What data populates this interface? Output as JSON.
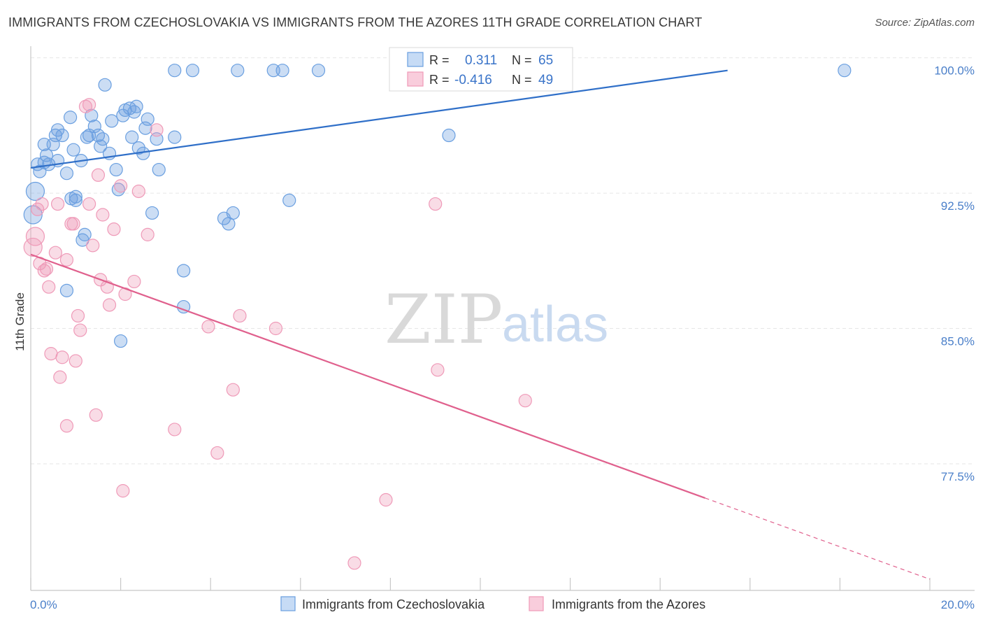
{
  "header": {
    "title": "IMMIGRANTS FROM CZECHOSLOVAKIA VS IMMIGRANTS FROM THE AZORES 11TH GRADE CORRELATION CHART",
    "source": "Source: ZipAtlas.com"
  },
  "watermark": {
    "zip": "ZIP",
    "atlas": "atlas"
  },
  "legend_box": {
    "rows": [
      {
        "r_label": "R =",
        "r_value": "0.311",
        "n_label": "N =",
        "n_value": "65"
      },
      {
        "r_label": "R =",
        "r_value": "-0.416",
        "n_label": "N =",
        "n_value": "49"
      }
    ]
  },
  "bottom_legend": {
    "items": [
      "Immigrants from Czechoslovakia",
      "Immigrants from the Azores"
    ]
  },
  "chart_data": {
    "type": "scatter",
    "title": "IMMIGRANTS FROM CZECHOSLOVAKIA VS IMMIGRANTS FROM THE AZORES 11TH GRADE CORRELATION CHART",
    "xlabel": "",
    "ylabel": "11th Grade",
    "xlim": [
      0,
      20
    ],
    "ylim": [
      71.8,
      101.5
    ],
    "x_tick_labels": [
      "0.0%",
      "20.0%"
    ],
    "y_tick_labels": [
      "100.0%",
      "92.5%",
      "85.0%",
      "77.5%"
    ],
    "y_ticks": [
      100.0,
      92.5,
      85.0,
      77.5
    ],
    "grid": true,
    "colors": {
      "blue": "#6a9fe0",
      "pink": "#ef9ab8",
      "blue_line": "#2f6fc8",
      "pink_line": "#e0608d"
    },
    "series": [
      {
        "name": "Immigrants from Czechoslovakia",
        "color": "#6a9fe0",
        "r": 0.311,
        "n": 65,
        "trend": {
          "x0": 0,
          "y0": 94.6,
          "x1": 15.5,
          "y1": 100.0
        },
        "points": [
          [
            0.05,
            92.0
          ],
          [
            0.1,
            93.3
          ],
          [
            0.15,
            94.8
          ],
          [
            0.2,
            94.4
          ],
          [
            0.3,
            94.9
          ],
          [
            0.3,
            95.9
          ],
          [
            0.35,
            95.3
          ],
          [
            0.4,
            94.8
          ],
          [
            0.5,
            95.9
          ],
          [
            0.55,
            96.4
          ],
          [
            0.6,
            96.7
          ],
          [
            0.7,
            96.4
          ],
          [
            0.8,
            94.3
          ],
          [
            0.88,
            97.4
          ],
          [
            0.9,
            92.9
          ],
          [
            0.95,
            95.6
          ],
          [
            1.0,
            92.8
          ],
          [
            1.12,
            95.0
          ],
          [
            1.15,
            90.6
          ],
          [
            1.2,
            90.9
          ],
          [
            1.25,
            96.3
          ],
          [
            1.3,
            96.4
          ],
          [
            1.35,
            97.5
          ],
          [
            1.42,
            96.9
          ],
          [
            1.5,
            96.4
          ],
          [
            1.55,
            95.8
          ],
          [
            1.6,
            96.2
          ],
          [
            1.65,
            99.2
          ],
          [
            1.75,
            95.4
          ],
          [
            1.8,
            97.2
          ],
          [
            1.9,
            94.5
          ],
          [
            1.95,
            93.4
          ],
          [
            2.05,
            97.5
          ],
          [
            2.1,
            97.8
          ],
          [
            2.2,
            97.9
          ],
          [
            2.25,
            96.3
          ],
          [
            2.3,
            97.7
          ],
          [
            2.35,
            98.0
          ],
          [
            2.4,
            95.7
          ],
          [
            2.5,
            95.4
          ],
          [
            2.55,
            96.8
          ],
          [
            2.6,
            97.3
          ],
          [
            2.7,
            92.1
          ],
          [
            2.8,
            96.2
          ],
          [
            2.85,
            94.5
          ],
          [
            3.2,
            100.0
          ],
          [
            3.2,
            96.3
          ],
          [
            3.4,
            88.9
          ],
          [
            3.6,
            100.0
          ],
          [
            4.3,
            91.8
          ],
          [
            4.4,
            91.5
          ],
          [
            4.5,
            92.1
          ],
          [
            4.6,
            100.0
          ],
          [
            5.4,
            100.0
          ],
          [
            5.6,
            100.0
          ],
          [
            5.75,
            92.8
          ],
          [
            6.4,
            100.0
          ],
          [
            8.2,
            100.0
          ],
          [
            9.3,
            96.4
          ],
          [
            18.1,
            100.0
          ],
          [
            0.8,
            87.8
          ],
          [
            2.0,
            85.0
          ],
          [
            3.4,
            86.9
          ],
          [
            1.0,
            93.0
          ],
          [
            0.6,
            95.0
          ]
        ]
      },
      {
        "name": "Immigrants from the Azores",
        "color": "#ef9ab8",
        "r": -0.416,
        "n": 49,
        "trend": {
          "x0": 0,
          "y0": 89.8,
          "x1": 15.0,
          "y1": 76.3,
          "dash_x1": 20.0,
          "dash_y1": 71.8
        },
        "points": [
          [
            0.05,
            90.2
          ],
          [
            0.1,
            90.8
          ],
          [
            0.15,
            92.3
          ],
          [
            0.2,
            89.3
          ],
          [
            0.25,
            92.6
          ],
          [
            0.3,
            88.9
          ],
          [
            0.35,
            89.0
          ],
          [
            0.4,
            88.0
          ],
          [
            0.45,
            84.3
          ],
          [
            0.55,
            89.9
          ],
          [
            0.6,
            92.6
          ],
          [
            0.65,
            83.0
          ],
          [
            0.7,
            84.1
          ],
          [
            0.8,
            80.3
          ],
          [
            0.8,
            89.5
          ],
          [
            0.9,
            91.5
          ],
          [
            0.95,
            91.5
          ],
          [
            1.0,
            83.9
          ],
          [
            1.05,
            86.4
          ],
          [
            1.1,
            85.6
          ],
          [
            1.22,
            98.0
          ],
          [
            1.3,
            98.1
          ],
          [
            1.3,
            92.6
          ],
          [
            1.38,
            90.3
          ],
          [
            1.45,
            80.9
          ],
          [
            1.5,
            94.2
          ],
          [
            1.55,
            88.4
          ],
          [
            1.6,
            92.0
          ],
          [
            1.7,
            88.0
          ],
          [
            1.75,
            87.0
          ],
          [
            1.85,
            91.2
          ],
          [
            2.0,
            93.6
          ],
          [
            2.05,
            76.7
          ],
          [
            2.1,
            87.6
          ],
          [
            2.3,
            88.3
          ],
          [
            2.4,
            93.3
          ],
          [
            2.6,
            90.9
          ],
          [
            2.8,
            96.7
          ],
          [
            3.2,
            80.1
          ],
          [
            3.95,
            85.8
          ],
          [
            4.15,
            78.8
          ],
          [
            4.5,
            82.3
          ],
          [
            4.65,
            86.4
          ],
          [
            5.45,
            85.7
          ],
          [
            7.2,
            72.7
          ],
          [
            7.9,
            76.2
          ],
          [
            9.0,
            92.6
          ],
          [
            9.05,
            83.4
          ],
          [
            11.0,
            81.7
          ]
        ]
      }
    ]
  }
}
